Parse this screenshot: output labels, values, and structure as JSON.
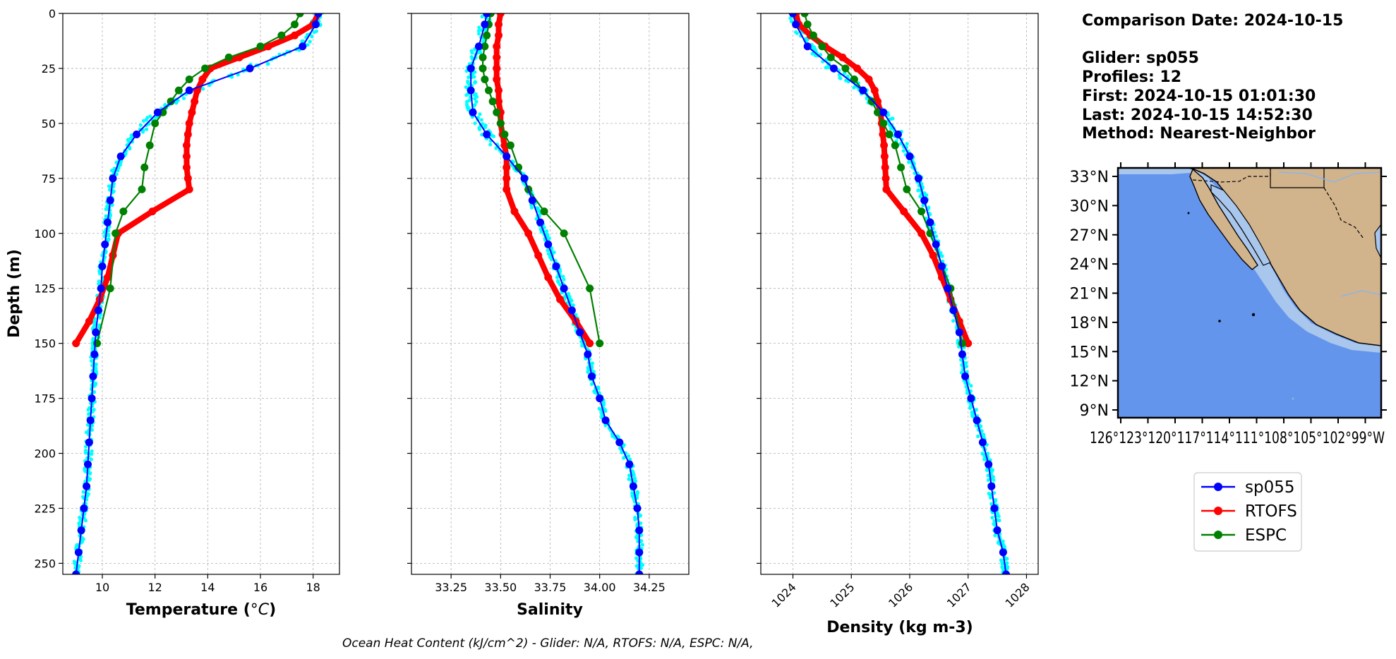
{
  "info": {
    "comparison_date": "Comparison Date: 2024-10-15",
    "glider": "Glider: sp055",
    "profiles": "Profiles: 12",
    "first": "First: 2024-10-15 01:01:30",
    "last": "Last: 2024-10-15 14:52:30",
    "method": "Method: Nearest-Neighbor"
  },
  "footer": "Ocean Heat Content (kJ/cm^2) - Glider: N/A,  RTOFS: N/A,  ESPC: N/A,",
  "colors": {
    "glider_scatter": "#00ffff",
    "glider": "#0000ff",
    "rtofs": "#ff0000",
    "espc": "#008000",
    "ocean": "#6495ed",
    "land": "#d2b48c",
    "shelf": "#a9c6ec",
    "grid": "#b0b0b0"
  },
  "map": {
    "lat_ticks": [
      "33°N",
      "30°N",
      "27°N",
      "24°N",
      "21°N",
      "18°N",
      "15°N",
      "12°N",
      "9°N"
    ],
    "lon_ticks_text": "126°123°120°117°114°111°108°105°102°99°W"
  },
  "legend": [
    {
      "label": "sp055",
      "color": "#0000ff"
    },
    {
      "label": "RTOFS",
      "color": "#ff0000"
    },
    {
      "label": "ESPC",
      "color": "#008000"
    }
  ],
  "chart_data": [
    {
      "type": "line",
      "xlabel": "Temperature (°C)",
      "ylabel": "Depth (m)",
      "xlim": [
        8.5,
        19
      ],
      "ylim": [
        255,
        0
      ],
      "y_inverted": true,
      "xticks": [
        10,
        12,
        14,
        16,
        18
      ],
      "yticks": [
        0,
        25,
        50,
        75,
        100,
        125,
        150,
        175,
        200,
        225,
        250
      ],
      "grid": true,
      "series": [
        {
          "name": "sp055",
          "depth": [
            0,
            5,
            15,
            25,
            35,
            45,
            55,
            65,
            75,
            85,
            95,
            105,
            115,
            125,
            135,
            145,
            155,
            165,
            175,
            185,
            195,
            205,
            215,
            225,
            235,
            245,
            255
          ],
          "values": [
            18.2,
            18.1,
            17.6,
            15.6,
            13.3,
            12.1,
            11.3,
            10.7,
            10.4,
            10.3,
            10.2,
            10.1,
            10.0,
            9.95,
            9.85,
            9.75,
            9.7,
            9.65,
            9.6,
            9.55,
            9.5,
            9.45,
            9.4,
            9.3,
            9.2,
            9.1,
            9.0
          ]
        },
        {
          "name": "RTOFS",
          "depth": [
            0,
            5,
            10,
            15,
            20,
            25,
            30,
            35,
            40,
            45,
            50,
            55,
            60,
            65,
            70,
            75,
            80,
            90,
            100,
            110,
            120,
            130,
            140,
            150
          ],
          "values": [
            18.2,
            18.0,
            17.3,
            16.3,
            15.2,
            14.1,
            13.8,
            13.6,
            13.5,
            13.4,
            13.3,
            13.25,
            13.2,
            13.2,
            13.2,
            13.25,
            13.3,
            11.9,
            10.6,
            10.4,
            10.2,
            9.9,
            9.5,
            9.0
          ]
        },
        {
          "name": "ESPC",
          "depth": [
            0,
            5,
            10,
            15,
            20,
            25,
            30,
            35,
            40,
            45,
            50,
            60,
            70,
            80,
            90,
            100,
            125,
            150
          ],
          "values": [
            17.5,
            17.3,
            16.8,
            16.0,
            14.8,
            13.9,
            13.3,
            12.9,
            12.6,
            12.3,
            12.0,
            11.8,
            11.6,
            11.5,
            10.8,
            10.5,
            10.3,
            9.8
          ]
        }
      ]
    },
    {
      "type": "line",
      "xlabel": "Salinity",
      "xlim": [
        33.05,
        34.45
      ],
      "ylim": [
        255,
        0
      ],
      "y_inverted": true,
      "xticks": [
        33.25,
        33.5,
        33.75,
        34.0,
        34.25
      ],
      "grid": true,
      "series": [
        {
          "name": "sp055",
          "depth": [
            0,
            5,
            15,
            25,
            35,
            45,
            55,
            65,
            75,
            85,
            95,
            105,
            115,
            125,
            135,
            145,
            155,
            165,
            175,
            185,
            195,
            205,
            215,
            225,
            235,
            245,
            255
          ],
          "values": [
            33.43,
            33.42,
            33.39,
            33.35,
            33.35,
            33.36,
            33.43,
            33.53,
            33.62,
            33.66,
            33.7,
            33.74,
            33.78,
            33.82,
            33.86,
            33.9,
            33.94,
            33.96,
            34.0,
            34.03,
            34.1,
            34.15,
            34.17,
            34.19,
            34.2,
            34.2,
            34.2
          ]
        },
        {
          "name": "RTOFS",
          "depth": [
            0,
            5,
            10,
            15,
            20,
            25,
            30,
            35,
            40,
            45,
            50,
            55,
            60,
            65,
            70,
            75,
            80,
            90,
            100,
            110,
            120,
            130,
            140,
            150
          ],
          "values": [
            33.5,
            33.49,
            33.49,
            33.48,
            33.48,
            33.48,
            33.48,
            33.49,
            33.49,
            33.5,
            33.5,
            33.51,
            33.52,
            33.53,
            33.53,
            33.53,
            33.53,
            33.57,
            33.64,
            33.69,
            33.74,
            33.8,
            33.88,
            33.95
          ]
        },
        {
          "name": "ESPC",
          "depth": [
            0,
            5,
            10,
            15,
            20,
            25,
            30,
            35,
            40,
            45,
            50,
            55,
            60,
            70,
            80,
            90,
            100,
            125,
            150
          ],
          "values": [
            33.45,
            33.44,
            33.43,
            33.42,
            33.41,
            33.41,
            33.42,
            33.44,
            33.46,
            33.48,
            33.5,
            33.52,
            33.55,
            33.59,
            33.64,
            33.72,
            33.82,
            33.95,
            34.0
          ]
        }
      ]
    },
    {
      "type": "line",
      "xlabel": "Density (kg m-3)",
      "xlim": [
        1023.45,
        1028.2
      ],
      "ylim": [
        255,
        0
      ],
      "y_inverted": true,
      "xticks": [
        1024,
        1025,
        1026,
        1027,
        1028
      ],
      "grid": true,
      "series": [
        {
          "name": "sp055",
          "depth": [
            0,
            5,
            15,
            25,
            35,
            45,
            55,
            65,
            75,
            85,
            95,
            105,
            115,
            125,
            135,
            145,
            155,
            165,
            175,
            185,
            195,
            205,
            215,
            225,
            235,
            245,
            255
          ],
          "values": [
            1024.0,
            1024.05,
            1024.25,
            1024.7,
            1025.2,
            1025.55,
            1025.8,
            1026.0,
            1026.15,
            1026.25,
            1026.35,
            1026.45,
            1026.55,
            1026.65,
            1026.75,
            1026.85,
            1026.9,
            1026.95,
            1027.05,
            1027.15,
            1027.25,
            1027.35,
            1027.4,
            1027.45,
            1027.5,
            1027.6,
            1027.65
          ]
        },
        {
          "name": "RTOFS",
          "depth": [
            0,
            5,
            10,
            15,
            20,
            25,
            30,
            35,
            40,
            45,
            50,
            55,
            60,
            65,
            70,
            75,
            80,
            90,
            100,
            110,
            120,
            130,
            140,
            150
          ],
          "values": [
            1024.05,
            1024.1,
            1024.3,
            1024.55,
            1024.85,
            1025.1,
            1025.3,
            1025.4,
            1025.45,
            1025.5,
            1025.52,
            1025.54,
            1025.56,
            1025.57,
            1025.58,
            1025.59,
            1025.6,
            1025.9,
            1026.2,
            1026.4,
            1026.55,
            1026.7,
            1026.85,
            1027.0
          ]
        },
        {
          "name": "ESPC",
          "depth": [
            0,
            5,
            10,
            15,
            20,
            25,
            30,
            35,
            40,
            45,
            50,
            55,
            60,
            70,
            80,
            90,
            100,
            125,
            150
          ],
          "values": [
            1024.2,
            1024.25,
            1024.35,
            1024.5,
            1024.65,
            1024.9,
            1025.05,
            1025.2,
            1025.35,
            1025.45,
            1025.55,
            1025.65,
            1025.75,
            1025.85,
            1025.95,
            1026.2,
            1026.35,
            1026.7,
            1026.9
          ]
        }
      ]
    }
  ]
}
